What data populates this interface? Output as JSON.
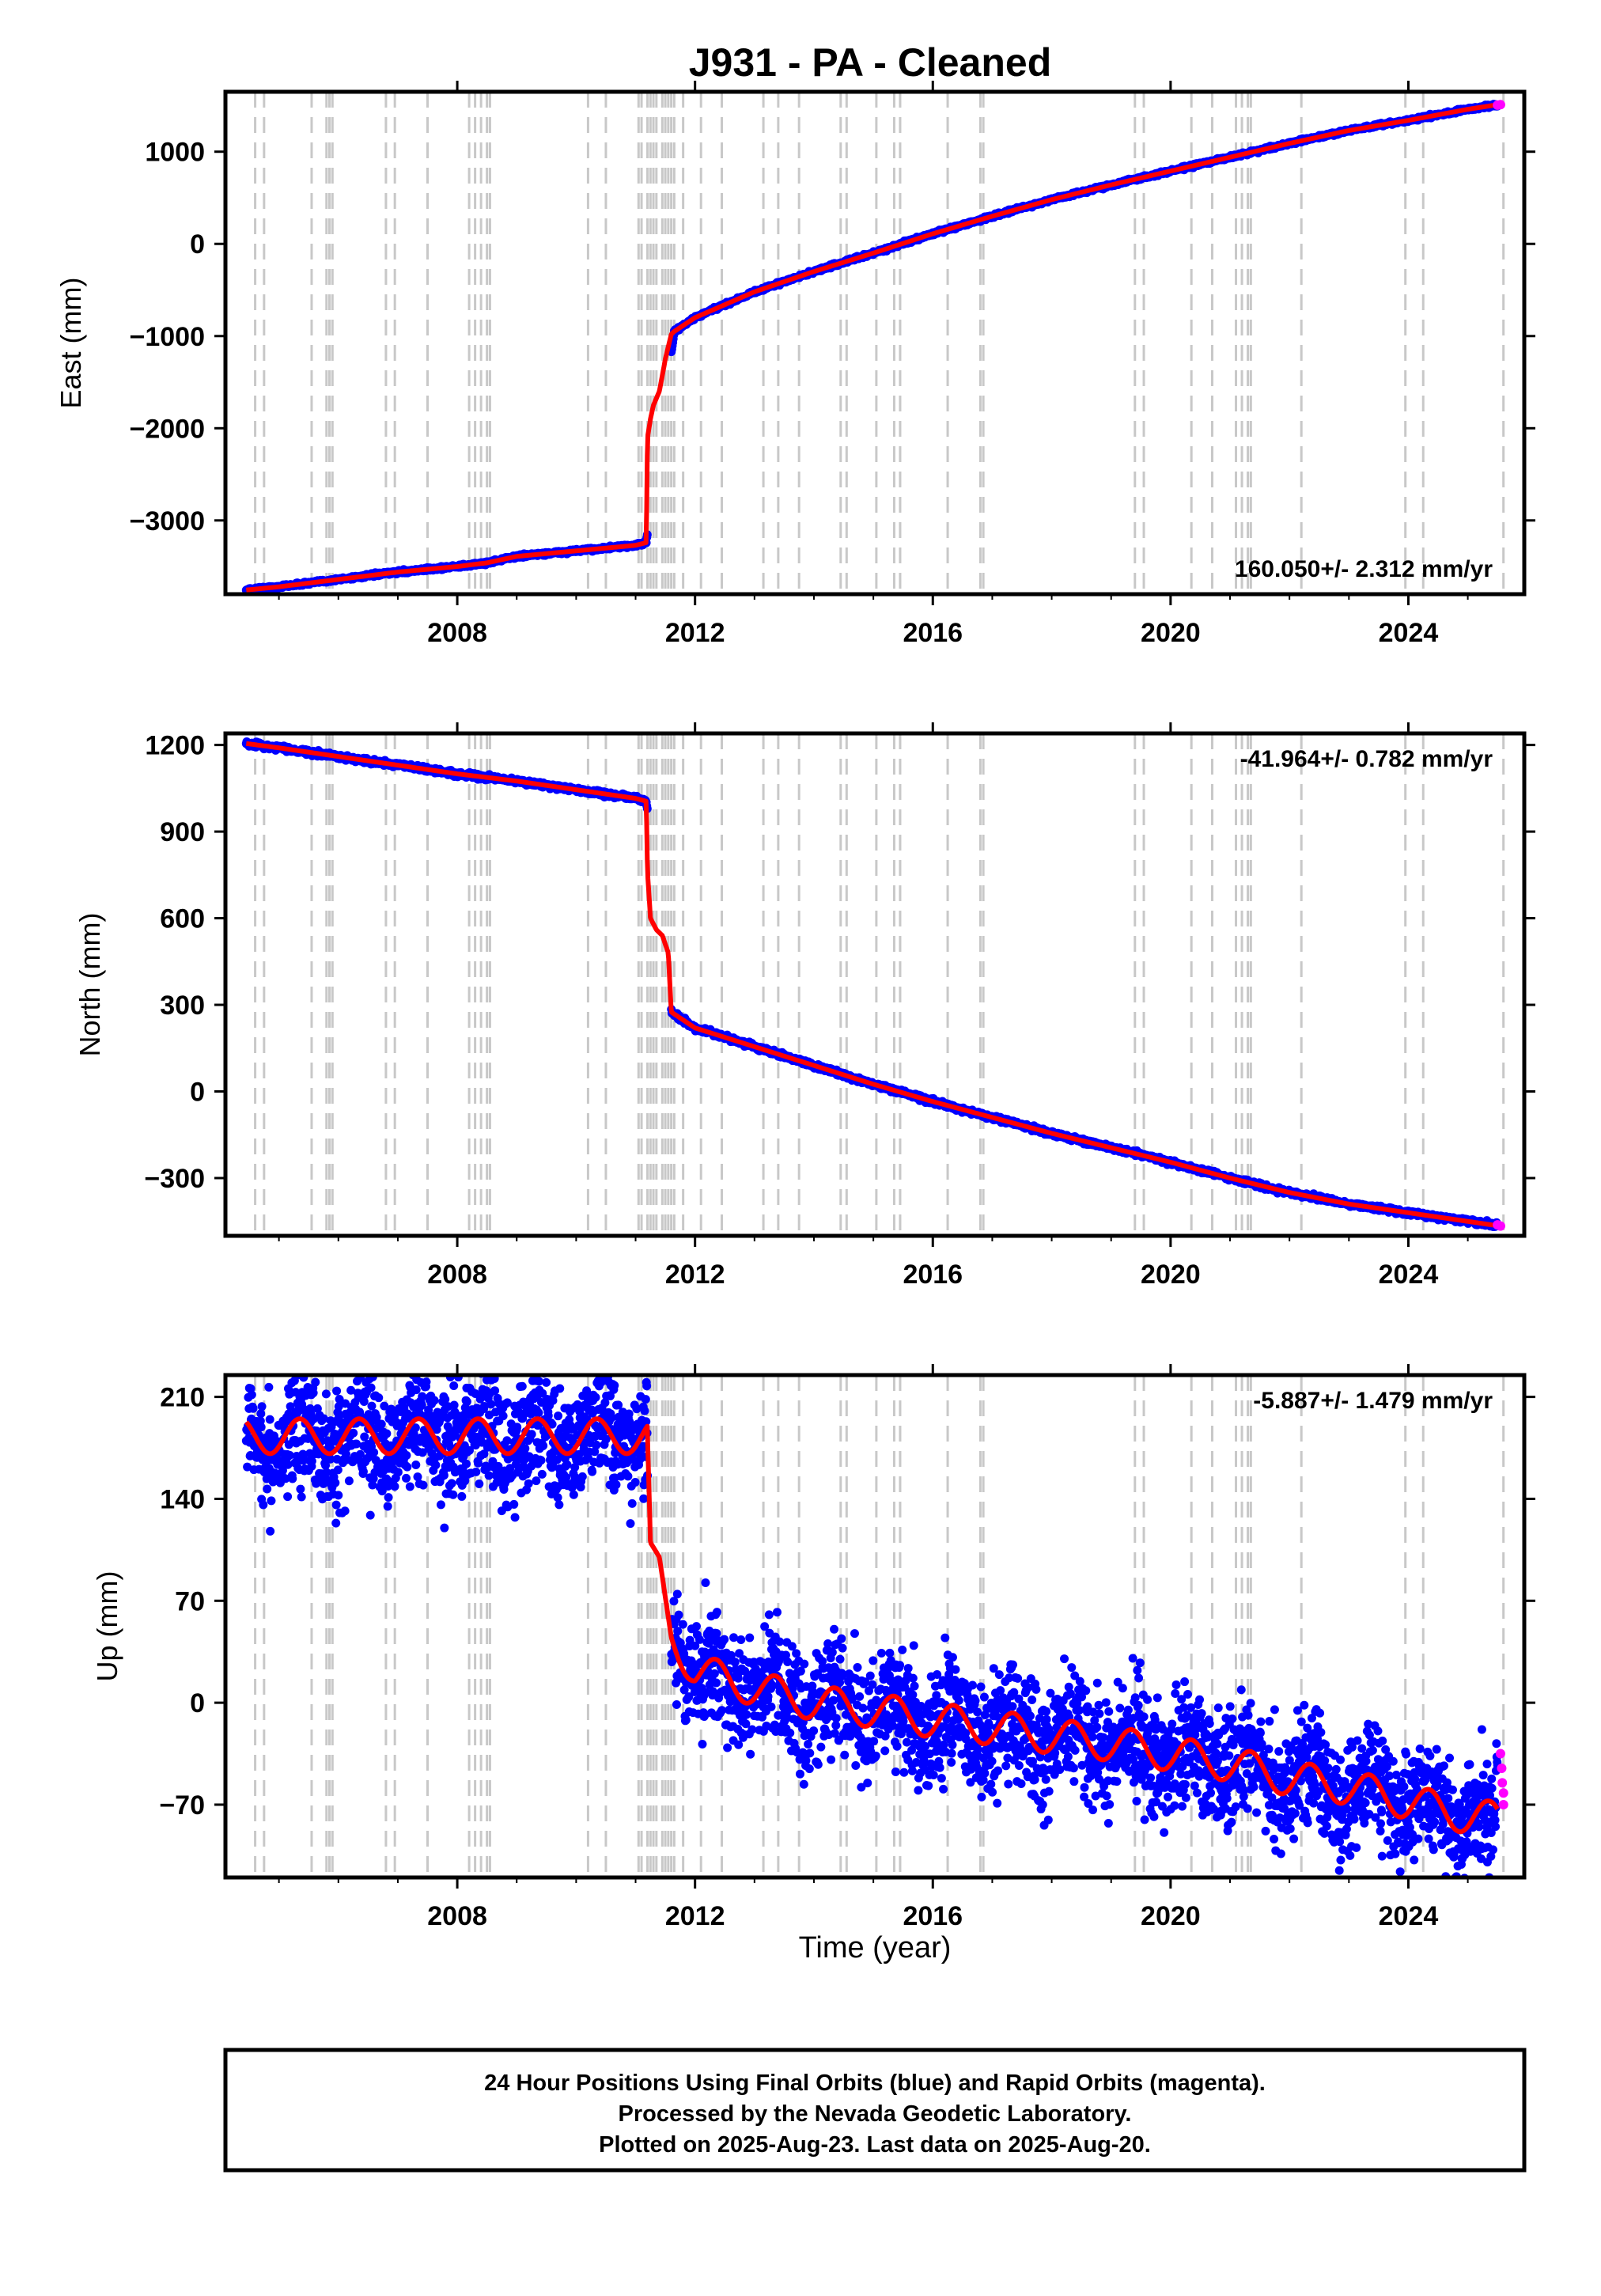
{
  "title": "J931  - PA - Cleaned",
  "xlabel": "Time (year)",
  "footer": [
    "24 Hour Positions Using Final Orbits (blue) and Rapid Orbits (magenta).",
    "Processed by the Nevada Geodetic Laboratory.",
    "Plotted on 2025-Aug-23. Last data on 2025-Aug-20."
  ],
  "colors": {
    "final_orbits": "#0000ff",
    "rapid_orbits": "#ff00ff",
    "model": "#ff0000",
    "event_lines": "#c8c8c8"
  },
  "chart_data": [
    {
      "type": "scatter",
      "ylabel": "East (mm)",
      "rate_label": "160.050+/- 2.312 mm/yr",
      "rate_position": "bottom-right",
      "xlim": [
        2004.1,
        2025.95
      ],
      "ylim": [
        -3800,
        1650
      ],
      "xticks": [
        2008,
        2012,
        2016,
        2020,
        2024
      ],
      "yticks": [
        1000,
        0,
        -1000,
        -2000,
        -3000
      ],
      "ytick_labels": [
        "1000",
        "0",
        "−1000",
        "−2000",
        "−3000"
      ],
      "grid": false,
      "series": [
        {
          "role": "final",
          "points": [
            [
              2004.45,
              -3755
            ],
            [
              2005,
              -3720
            ],
            [
              2006,
              -3640
            ],
            [
              2007,
              -3560
            ],
            [
              2008,
              -3500
            ],
            [
              2008.5,
              -3460
            ],
            [
              2009,
              -3390
            ],
            [
              2010,
              -3330
            ],
            [
              2011,
              -3270
            ],
            [
              2011.18,
              -3240
            ],
            [
              2011.65,
              -950
            ],
            [
              2012,
              -800
            ],
            [
              2013,
              -520
            ],
            [
              2014,
              -300
            ],
            [
              2015,
              -100
            ],
            [
              2016,
              110
            ],
            [
              2017,
              300
            ],
            [
              2018,
              480
            ],
            [
              2019,
              640
            ],
            [
              2020,
              790
            ],
            [
              2021,
              940
            ],
            [
              2022,
              1090
            ],
            [
              2023,
              1230
            ],
            [
              2024,
              1340
            ],
            [
              2025,
              1460
            ],
            [
              2025.5,
              1510
            ]
          ],
          "scatter": 12
        },
        {
          "role": "model",
          "points": [
            [
              2004.45,
              -3755
            ],
            [
              2005,
              -3720
            ],
            [
              2006,
              -3640
            ],
            [
              2007,
              -3560
            ],
            [
              2008,
              -3500
            ],
            [
              2008.5,
              -3460
            ],
            [
              2009,
              -3390
            ],
            [
              2010,
              -3330
            ],
            [
              2011,
              -3270
            ],
            [
              2011.18,
              -3240
            ],
            [
              2011.2,
              -2100
            ],
            [
              2011.25,
              -1900
            ],
            [
              2011.3,
              -1750
            ],
            [
              2011.4,
              -1600
            ],
            [
              2011.5,
              -1250
            ],
            [
              2011.6,
              -980
            ],
            [
              2011.65,
              -950
            ],
            [
              2012,
              -800
            ],
            [
              2013,
              -520
            ],
            [
              2014,
              -300
            ],
            [
              2015,
              -100
            ],
            [
              2016,
              110
            ],
            [
              2017,
              300
            ],
            [
              2018,
              480
            ],
            [
              2019,
              640
            ],
            [
              2020,
              790
            ],
            [
              2021,
              940
            ],
            [
              2022,
              1090
            ],
            [
              2023,
              1230
            ],
            [
              2024,
              1340
            ],
            [
              2025,
              1460
            ],
            [
              2025.5,
              1510
            ]
          ]
        },
        {
          "role": "rapid",
          "points": [
            [
              2025.5,
              1505
            ],
            [
              2025.55,
              1510
            ]
          ]
        }
      ]
    },
    {
      "type": "scatter",
      "ylabel": "North (mm)",
      "rate_label": "-41.964+/- 0.782 mm/yr",
      "rate_position": "top-right",
      "xlim": [
        2004.1,
        2025.95
      ],
      "ylim": [
        -500,
        1240
      ],
      "xticks": [
        2008,
        2012,
        2016,
        2020,
        2024
      ],
      "yticks": [
        1200,
        900,
        600,
        300,
        0,
        -300
      ],
      "ytick_labels": [
        "1200",
        "900",
        "600",
        "300",
        "0",
        "−300"
      ],
      "grid": false,
      "series": [
        {
          "role": "final",
          "points": [
            [
              2004.45,
              1205
            ],
            [
              2005,
              1190
            ],
            [
              2006,
              1160
            ],
            [
              2007,
              1130
            ],
            [
              2008,
              1100
            ],
            [
              2009,
              1075
            ],
            [
              2010,
              1045
            ],
            [
              2011,
              1015
            ],
            [
              2011.18,
              1005
            ],
            [
              2011.6,
              275
            ],
            [
              2012,
              220
            ],
            [
              2013,
              155
            ],
            [
              2014,
              90
            ],
            [
              2015,
              25
            ],
            [
              2016,
              -35
            ],
            [
              2017,
              -90
            ],
            [
              2018,
              -145
            ],
            [
              2019,
              -195
            ],
            [
              2020,
              -245
            ],
            [
              2021,
              -300
            ],
            [
              2022,
              -350
            ],
            [
              2023,
              -390
            ],
            [
              2024,
              -420
            ],
            [
              2025,
              -450
            ],
            [
              2025.5,
              -465
            ]
          ],
          "scatter": 6
        },
        {
          "role": "model",
          "points": [
            [
              2004.45,
              1205
            ],
            [
              2005,
              1190
            ],
            [
              2006,
              1160
            ],
            [
              2007,
              1130
            ],
            [
              2008,
              1100
            ],
            [
              2009,
              1075
            ],
            [
              2010,
              1045
            ],
            [
              2011,
              1015
            ],
            [
              2011.18,
              1005
            ],
            [
              2011.2,
              760
            ],
            [
              2011.25,
              600
            ],
            [
              2011.35,
              560
            ],
            [
              2011.45,
              540
            ],
            [
              2011.55,
              480
            ],
            [
              2011.6,
              275
            ],
            [
              2012,
              220
            ],
            [
              2013,
              155
            ],
            [
              2014,
              90
            ],
            [
              2015,
              25
            ],
            [
              2016,
              -35
            ],
            [
              2017,
              -90
            ],
            [
              2018,
              -145
            ],
            [
              2019,
              -195
            ],
            [
              2020,
              -245
            ],
            [
              2021,
              -300
            ],
            [
              2022,
              -350
            ],
            [
              2023,
              -390
            ],
            [
              2024,
              -420
            ],
            [
              2025,
              -450
            ],
            [
              2025.5,
              -465
            ]
          ]
        },
        {
          "role": "rapid",
          "points": [
            [
              2025.5,
              -462
            ],
            [
              2025.55,
              -466
            ]
          ]
        }
      ]
    },
    {
      "type": "scatter",
      "ylabel": "Up (mm)",
      "rate_label": "-5.887+/- 1.479 mm/yr",
      "rate_position": "top-right",
      "xlim": [
        2004.1,
        2025.95
      ],
      "ylim": [
        -120,
        225
      ],
      "xticks": [
        2008,
        2012,
        2016,
        2020,
        2024
      ],
      "yticks": [
        210,
        140,
        70,
        0,
        -70
      ],
      "ytick_labels": [
        "210",
        "140",
        "70",
        "0",
        "−70"
      ],
      "grid": false,
      "seasonal_amplitude": 12,
      "series": [
        {
          "role": "final",
          "points": [
            [
              2004.45,
              183
            ],
            [
              2011.2,
              183
            ],
            [
              2011.25,
              110
            ],
            [
              2011.4,
              100
            ],
            [
              2011.6,
              45
            ],
            [
              2012,
              22
            ],
            [
              2013,
              10
            ],
            [
              2014,
              0
            ],
            [
              2015,
              -5
            ],
            [
              2016,
              -12
            ],
            [
              2017,
              -17
            ],
            [
              2018,
              -23
            ],
            [
              2019,
              -28
            ],
            [
              2020,
              -35
            ],
            [
              2021,
              -42
            ],
            [
              2022,
              -52
            ],
            [
              2023,
              -58
            ],
            [
              2024,
              -68
            ],
            [
              2025,
              -78
            ],
            [
              2025.5,
              -80
            ]
          ],
          "scatter": 28
        },
        {
          "role": "model",
          "points": [
            [
              2004.45,
              183
            ],
            [
              2011.2,
              183
            ],
            [
              2011.25,
              110
            ],
            [
              2011.4,
              100
            ],
            [
              2011.6,
              45
            ],
            [
              2012,
              22
            ],
            [
              2013,
              10
            ],
            [
              2014,
              0
            ],
            [
              2015,
              -5
            ],
            [
              2016,
              -12
            ],
            [
              2017,
              -17
            ],
            [
              2018,
              -23
            ],
            [
              2019,
              -28
            ],
            [
              2020,
              -35
            ],
            [
              2021,
              -42
            ],
            [
              2022,
              -52
            ],
            [
              2023,
              -58
            ],
            [
              2024,
              -68
            ],
            [
              2025,
              -78
            ],
            [
              2025.5,
              -80
            ]
          ]
        },
        {
          "role": "rapid",
          "points": [
            [
              2025.55,
              -35
            ],
            [
              2025.57,
              -45
            ],
            [
              2025.58,
              -55
            ],
            [
              2025.6,
              -62
            ],
            [
              2025.6,
              -70
            ]
          ]
        }
      ]
    }
  ],
  "event_lines": [
    2004.6,
    2004.75,
    2005.55,
    2005.8,
    2005.85,
    2005.9,
    2006.8,
    2006.95,
    2007.5,
    2008.2,
    2008.3,
    2008.4,
    2008.5,
    2008.55,
    2010.2,
    2010.5,
    2011.05,
    2011.1,
    2011.2,
    2011.25,
    2011.3,
    2011.35,
    2011.45,
    2011.5,
    2011.55,
    2011.6,
    2011.65,
    2011.8,
    2012.1,
    2012.45,
    2013.15,
    2013.4,
    2013.75,
    2014.45,
    2014.55,
    2015.05,
    2015.35,
    2015.45,
    2016.25,
    2016.8,
    2016.85,
    2019.4,
    2019.55,
    2020.35,
    2020.7,
    2021.1,
    2021.2,
    2021.3,
    2021.35,
    2022.2,
    2023.95,
    2024.25,
    2025.6
  ]
}
